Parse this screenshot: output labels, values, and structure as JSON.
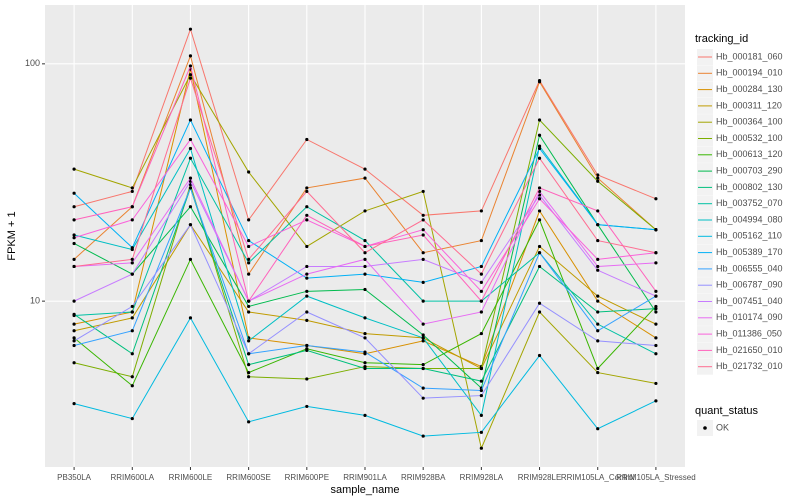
{
  "chart_data": {
    "type": "line",
    "x_label": "sample_name",
    "y_label": "FPKM + 1",
    "categories": [
      "PB350LA",
      "RRIM600LA",
      "RRIM600LE",
      "RRIM600SE",
      "RRIM600PE",
      "RRIM901LA",
      "RRIM928BA",
      "RRIM928LA",
      "RRIM928LE",
      "RRIM105LA_Control",
      "RRIM105LA_Stressed"
    ],
    "ylim": [
      2,
      177
    ],
    "yticks": [
      10,
      100
    ],
    "y_log": true,
    "grid": true,
    "legend_title": "tracking_id",
    "legend_position": "right",
    "point_legend": {
      "title": "quant_status",
      "labels": [
        "OK"
      ],
      "color": "#000000"
    },
    "series": [
      {
        "name": "Hb_000181_060",
        "color": "#F8766D",
        "values": [
          25,
          29,
          140,
          22,
          48,
          36,
          23,
          24,
          85,
          34,
          27
        ]
      },
      {
        "name": "Hb_000194_010",
        "color": "#EA8331",
        "values": [
          15,
          25,
          108,
          13,
          30,
          33,
          16,
          18,
          84,
          33,
          20
        ]
      },
      {
        "name": "Hb_000284_130",
        "color": "#D89000",
        "values": [
          8,
          9,
          95,
          7,
          6.5,
          6,
          6.8,
          5.3,
          24,
          10,
          7
        ]
      },
      {
        "name": "Hb_000311_120",
        "color": "#C09B00",
        "values": [
          7.5,
          8.5,
          21,
          9,
          8.3,
          7.3,
          7,
          5.2,
          17,
          10.5,
          8
        ]
      },
      {
        "name": "Hb_000364_100",
        "color": "#A3A500",
        "values": [
          36,
          30,
          90,
          35,
          17,
          24,
          29,
          2.4,
          9,
          5,
          4.5
        ]
      },
      {
        "name": "Hb_000532_100",
        "color": "#7CAE00",
        "values": [
          5.5,
          4.8,
          31,
          4.8,
          4.7,
          5.3,
          5.2,
          5.2,
          58,
          32,
          20
        ]
      },
      {
        "name": "Hb_000613_120",
        "color": "#39B600",
        "values": [
          7,
          4.4,
          15,
          5,
          6.3,
          5.5,
          5.4,
          7.3,
          22,
          5.2,
          9.5
        ]
      },
      {
        "name": "Hb_000703_290",
        "color": "#00BB4E",
        "values": [
          17.5,
          13,
          25,
          9.5,
          11,
          11.2,
          7.2,
          4.3,
          50,
          21,
          9
        ]
      },
      {
        "name": "Hb_000802_130",
        "color": "#00BF7D",
        "values": [
          8.8,
          6,
          30,
          5.4,
          6.2,
          5.2,
          5.2,
          4.6,
          14,
          9,
          9.3
        ]
      },
      {
        "name": "Hb_003752_070",
        "color": "#00C1A3",
        "values": [
          8.7,
          9,
          40,
          14.5,
          25,
          18,
          10,
          10,
          16,
          8,
          6
        ]
      },
      {
        "name": "Hb_004994_080",
        "color": "#00BFC4",
        "values": [
          19,
          16.5,
          44,
          6.8,
          10.5,
          8.5,
          7,
          3.3,
          45,
          21,
          20
        ]
      },
      {
        "name": "Hb_005162_110",
        "color": "#00BAE0",
        "values": [
          3.7,
          3.2,
          8.5,
          3.1,
          3.6,
          3.3,
          2.7,
          2.8,
          5.9,
          2.9,
          3.8
        ]
      },
      {
        "name": "Hb_005389_170",
        "color": "#00B0F6",
        "values": [
          28.5,
          16.8,
          58,
          18,
          12.5,
          13,
          12,
          14,
          44,
          21,
          20
        ]
      },
      {
        "name": "Hb_006555_040",
        "color": "#35A2FF",
        "values": [
          6.5,
          7.5,
          30,
          6,
          6.5,
          6.1,
          4.3,
          4.2,
          16,
          7.5,
          10.5
        ]
      },
      {
        "name": "Hb_006787_090",
        "color": "#9590FF",
        "values": [
          6.8,
          9.5,
          21,
          6,
          9,
          7,
          3.9,
          4,
          9.8,
          6.8,
          6.5
        ]
      },
      {
        "name": "Hb_007451_040",
        "color": "#C77CFF",
        "values": [
          10,
          13,
          32,
          10,
          14,
          14,
          15,
          12,
          28,
          13.5,
          10.5
        ]
      },
      {
        "name": "Hb_010174_090",
        "color": "#E76BF3",
        "values": [
          14,
          14.5,
          33,
          10,
          13,
          15,
          8,
          9,
          29,
          14,
          14.5
        ]
      },
      {
        "name": "Hb_011386_050",
        "color": "#FA62DB",
        "values": [
          18.5,
          22,
          48,
          17,
          22,
          17,
          20,
          11,
          27,
          15,
          16
        ]
      },
      {
        "name": "Hb_021650_010",
        "color": "#FF62BC",
        "values": [
          22,
          25,
          98,
          10,
          23,
          17,
          19,
          10,
          30,
          24,
          11
        ]
      },
      {
        "name": "Hb_021732_010",
        "color": "#FF6C91",
        "values": [
          14,
          15,
          87,
          15,
          29,
          16,
          22,
          13,
          40,
          18,
          16
        ]
      }
    ]
  }
}
